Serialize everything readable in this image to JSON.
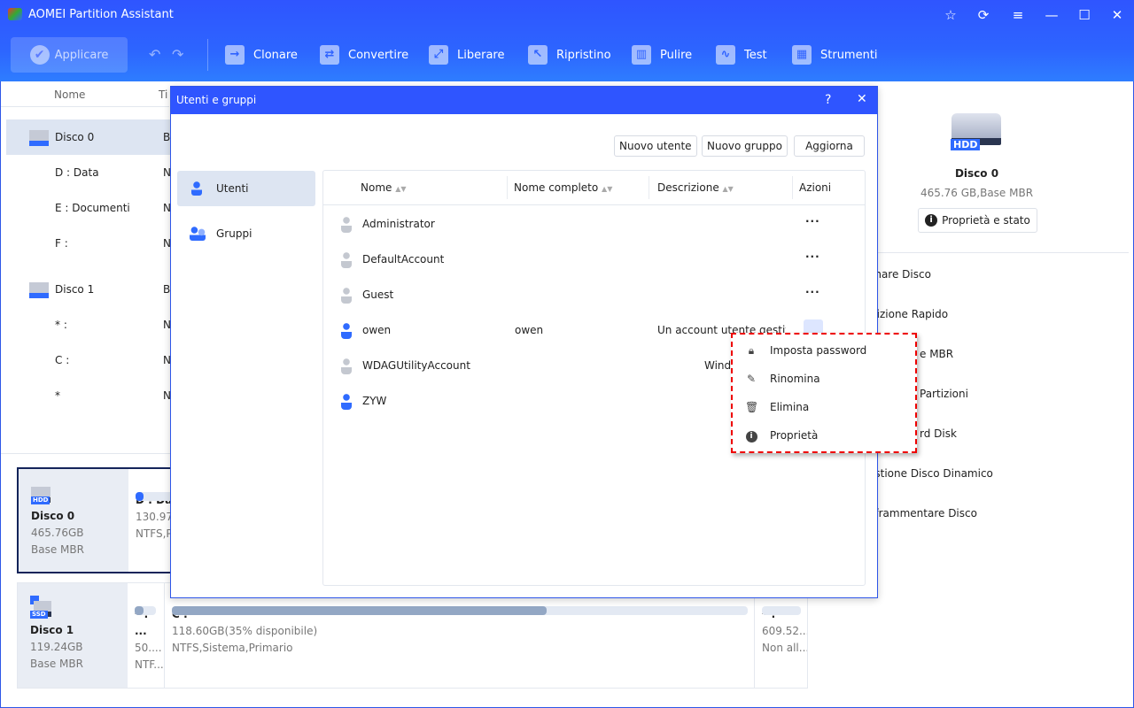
{
  "app": {
    "title": "AOMEI Partition Assistant"
  },
  "toolbar": {
    "apply": "Applicare",
    "items": [
      {
        "label": "Clonare",
        "icon": "clone-icon"
      },
      {
        "label": "Convertire",
        "icon": "convert-icon"
      },
      {
        "label": "Liberare",
        "icon": "free-up-icon"
      },
      {
        "label": "Ripristino",
        "icon": "recovery-icon"
      },
      {
        "label": "Pulire",
        "icon": "wipe-icon"
      },
      {
        "label": "Test",
        "icon": "test-icon"
      },
      {
        "label": "Strumenti",
        "icon": "tools-icon"
      }
    ]
  },
  "left": {
    "col_name": "Nome",
    "col_type": "Ti",
    "rows": [
      {
        "name": "Disco 0",
        "type": "B"
      },
      {
        "name": "D : Data",
        "type": "N"
      },
      {
        "name": "E : Documenti",
        "type": "N"
      },
      {
        "name": "F :",
        "type": "N"
      },
      {
        "name": "Disco 1",
        "type": "B"
      },
      {
        "name": "* :",
        "type": "N"
      },
      {
        "name": "C :",
        "type": "N"
      },
      {
        "name": "*",
        "type": "N"
      }
    ]
  },
  "cards": [
    {
      "name": "Disco 0",
      "size": "465.76GB",
      "kind": "Base MBR",
      "badge": "HDD",
      "parts": [
        {
          "name": "D : Dat",
          "size": "130.97G",
          "fs": "NTFS,P",
          "used": 0.05
        }
      ]
    },
    {
      "name": "Disco 1",
      "size": "119.24GB",
      "kind": "Base MBR",
      "badge": "SSD",
      "parts": [
        {
          "name": "* : ...",
          "size": "50....",
          "fs": "NTF...",
          "used": 0.4
        },
        {
          "name": "C :",
          "size": "118.60GB(35% disponibile)",
          "fs": "NTFS,Sistema,Primario",
          "used": 0.65
        },
        {
          "name": "* :",
          "size": "609.52...",
          "fs": "Non all...",
          "used": 0
        }
      ]
    }
  ],
  "right": {
    "disk": "Disco 0",
    "badge": "HDD",
    "info": "465.76 GB,Base MBR",
    "props": "Proprietà e stato",
    "ops": [
      "onare Disco",
      "rtizione Rapido",
      "e MBR",
      "Partizioni",
      "rd Disk",
      "estione Disco Dinamico",
      "eframmentare Disco"
    ]
  },
  "dialog": {
    "title": "Utenti e gruppi",
    "help": "?",
    "close": "✕",
    "new_user": "Nuovo utente",
    "new_group": "Nuovo gruppo",
    "refresh": "Aggiorna",
    "side": [
      "Utenti",
      "Gruppi"
    ],
    "cols": [
      "Nome",
      "Nome completo",
      "Descrizione",
      "Azioni"
    ],
    "users": [
      {
        "name": "Administrator",
        "full": "",
        "desc": "",
        "active": false
      },
      {
        "name": "DefaultAccount",
        "full": "",
        "desc": "",
        "active": false
      },
      {
        "name": "Guest",
        "full": "",
        "desc": "",
        "active": false
      },
      {
        "name": "owen",
        "full": "owen",
        "desc": "Un account utente gestit",
        "active": true
      },
      {
        "name": "WDAGUtilityAccount",
        "full": "",
        "desc": "Windo",
        "active": false
      },
      {
        "name": "ZYW",
        "full": "",
        "desc": "",
        "active": true
      }
    ],
    "menu": [
      {
        "label": "Imposta password",
        "icon": "lock-icon"
      },
      {
        "label": "Rinomina",
        "icon": "pencil-icon"
      },
      {
        "label": "Elimina",
        "icon": "trash-icon"
      },
      {
        "label": "Proprietà",
        "icon": "info-icon"
      }
    ]
  },
  "colors": {
    "brand": "#2f55ff",
    "highlight": "#e00000",
    "user_active": "#2f6bff",
    "user_inactive": "#c4c8d0"
  }
}
